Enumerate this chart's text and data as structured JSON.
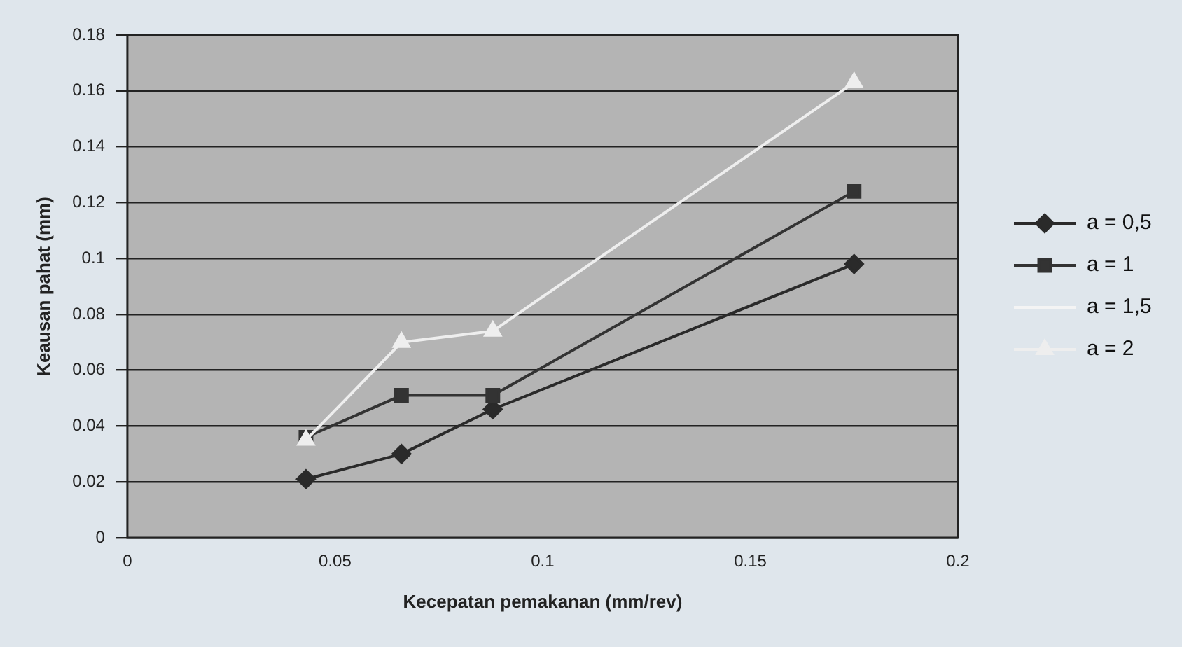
{
  "chart_data": {
    "type": "line",
    "xlabel": "Kecepatan pemakanan (mm/rev)",
    "ylabel": "Keausan pahat (mm)",
    "x": [
      0.043,
      0.066,
      0.088,
      0.175
    ],
    "xlim": [
      0,
      0.2
    ],
    "xticks": [
      0,
      0.05,
      0.1,
      0.15,
      0.2
    ],
    "ylim": [
      0,
      0.18
    ],
    "yticks": [
      0,
      0.02,
      0.04,
      0.06,
      0.08,
      0.1,
      0.12,
      0.14,
      0.16,
      0.18
    ],
    "grid": "y",
    "legend": "right",
    "series": [
      {
        "name": "a = 0,5",
        "color": "#2a2a2a",
        "marker": "diamond",
        "values": [
          0.021,
          0.03,
          0.046,
          0.098
        ]
      },
      {
        "name": "a = 1",
        "color": "#333333",
        "marker": "square",
        "values": [
          0.036,
          0.051,
          0.051,
          0.124
        ]
      },
      {
        "name": "a = 1,5",
        "color": "#f4f4f4",
        "marker": "none",
        "values": [
          null,
          null,
          null,
          null
        ]
      },
      {
        "name": "a = 2",
        "color": "#eeeeee",
        "marker": "triangle",
        "values": [
          0.035,
          0.07,
          0.074,
          0.163
        ]
      }
    ]
  }
}
